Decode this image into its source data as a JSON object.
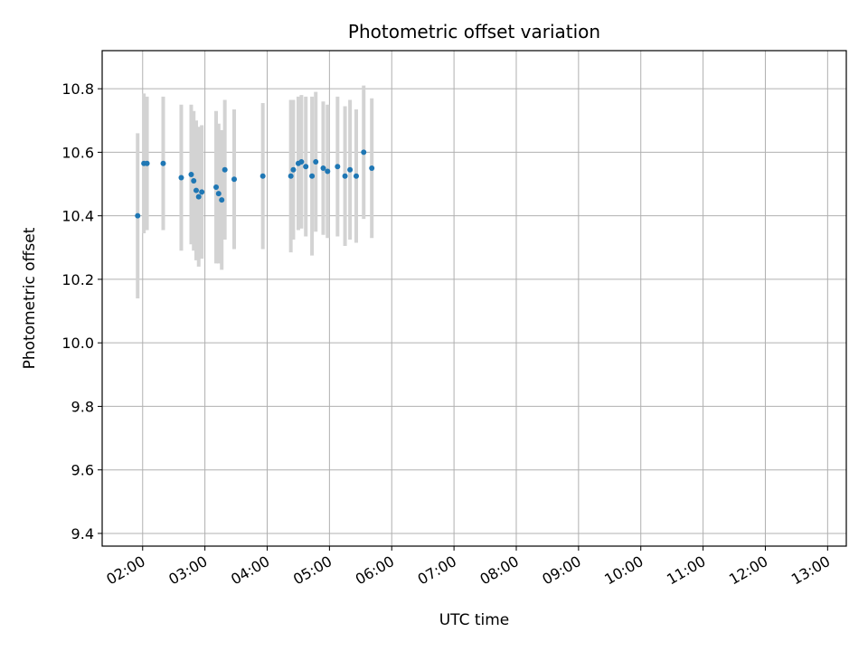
{
  "chart_data": {
    "type": "scatter",
    "title": "Photometric offset variation",
    "xlabel": "UTC time",
    "ylabel": "Photometric offset",
    "x_unit": "hours UTC",
    "xlim": [
      1.35,
      13.3
    ],
    "ylim": [
      9.36,
      10.92
    ],
    "grid": true,
    "x_ticks": [
      {
        "value": 2,
        "label": "02:00"
      },
      {
        "value": 3,
        "label": "03:00"
      },
      {
        "value": 4,
        "label": "04:00"
      },
      {
        "value": 5,
        "label": "05:00"
      },
      {
        "value": 6,
        "label": "06:00"
      },
      {
        "value": 7,
        "label": "07:00"
      },
      {
        "value": 8,
        "label": "08:00"
      },
      {
        "value": 9,
        "label": "09:00"
      },
      {
        "value": 10,
        "label": "10:00"
      },
      {
        "value": 11,
        "label": "11:00"
      },
      {
        "value": 12,
        "label": "12:00"
      },
      {
        "value": 13,
        "label": "13:00"
      }
    ],
    "y_ticks": [
      {
        "value": 9.4,
        "label": "9.4"
      },
      {
        "value": 9.6,
        "label": "9.6"
      },
      {
        "value": 9.8,
        "label": "9.8"
      },
      {
        "value": 10.0,
        "label": "10.0"
      },
      {
        "value": 10.2,
        "label": "10.2"
      },
      {
        "value": 10.4,
        "label": "10.4"
      },
      {
        "value": 10.6,
        "label": "10.6"
      },
      {
        "value": 10.8,
        "label": "10.8"
      }
    ],
    "point_color": "#1f77b4",
    "errorbar_color": "#d3d3d3",
    "series": [
      {
        "name": "photometric offset",
        "points": [
          {
            "x": 1.92,
            "y": 10.4,
            "err": 0.26
          },
          {
            "x": 2.02,
            "y": 10.565,
            "err": 0.22
          },
          {
            "x": 2.07,
            "y": 10.565,
            "err": 0.21
          },
          {
            "x": 2.33,
            "y": 10.565,
            "err": 0.21
          },
          {
            "x": 2.62,
            "y": 10.52,
            "err": 0.23
          },
          {
            "x": 2.78,
            "y": 10.53,
            "err": 0.22
          },
          {
            "x": 2.82,
            "y": 10.51,
            "err": 0.22
          },
          {
            "x": 2.86,
            "y": 10.48,
            "err": 0.22
          },
          {
            "x": 2.9,
            "y": 10.46,
            "err": 0.22
          },
          {
            "x": 2.95,
            "y": 10.475,
            "err": 0.21
          },
          {
            "x": 3.18,
            "y": 10.49,
            "err": 0.24
          },
          {
            "x": 3.22,
            "y": 10.47,
            "err": 0.22
          },
          {
            "x": 3.27,
            "y": 10.45,
            "err": 0.22
          },
          {
            "x": 3.32,
            "y": 10.545,
            "err": 0.22
          },
          {
            "x": 3.47,
            "y": 10.515,
            "err": 0.22
          },
          {
            "x": 3.93,
            "y": 10.525,
            "err": 0.23
          },
          {
            "x": 4.38,
            "y": 10.525,
            "err": 0.24
          },
          {
            "x": 4.42,
            "y": 10.545,
            "err": 0.22
          },
          {
            "x": 4.5,
            "y": 10.565,
            "err": 0.21
          },
          {
            "x": 4.55,
            "y": 10.57,
            "err": 0.21
          },
          {
            "x": 4.62,
            "y": 10.555,
            "err": 0.22
          },
          {
            "x": 4.72,
            "y": 10.525,
            "err": 0.25
          },
          {
            "x": 4.78,
            "y": 10.57,
            "err": 0.22
          },
          {
            "x": 4.9,
            "y": 10.55,
            "err": 0.21
          },
          {
            "x": 4.97,
            "y": 10.54,
            "err": 0.21
          },
          {
            "x": 5.13,
            "y": 10.555,
            "err": 0.22
          },
          {
            "x": 5.25,
            "y": 10.525,
            "err": 0.22
          },
          {
            "x": 5.33,
            "y": 10.545,
            "err": 0.22
          },
          {
            "x": 5.43,
            "y": 10.525,
            "err": 0.21
          },
          {
            "x": 5.55,
            "y": 10.6,
            "err": 0.21
          },
          {
            "x": 5.68,
            "y": 10.55,
            "err": 0.22
          }
        ]
      }
    ]
  }
}
